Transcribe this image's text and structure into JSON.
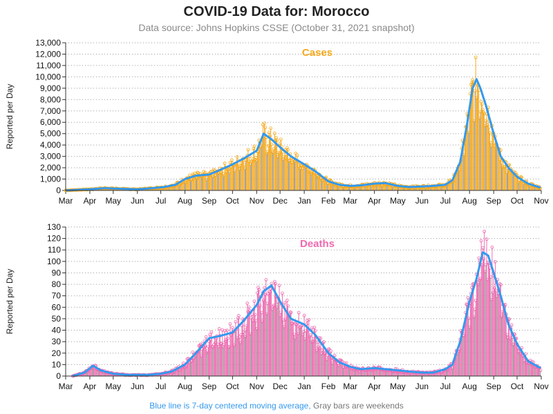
{
  "title": "COVID-19 Data for: Morocco",
  "subtitle": "Data source: Johns Hopkins CSSE (October 31, 2021 snapshot)",
  "footer": {
    "blue_text": "Blue line is 7-day centered moving average,",
    "gray_text": "Gray bars are weekends"
  },
  "colors": {
    "cases_bar": "#f5a91c",
    "deaths_bar": "#ee6ab0",
    "cases_label": "#f5a91c",
    "deaths_label": "#ee6ab0",
    "moving_average": "#3399ee",
    "weekend_bar": "#9a9a9a",
    "footer_blue": "#3399ee",
    "footer_gray": "#777777"
  },
  "chart_data": [
    {
      "type": "bar",
      "label": "Cases",
      "ylabel": "Reported per Day",
      "ylim": [
        0,
        13000
      ],
      "yticks": [
        0,
        1000,
        2000,
        3000,
        4000,
        5000,
        6000,
        7000,
        8000,
        9000,
        10000,
        11000,
        12000,
        13000
      ],
      "ytick_labels": [
        "0",
        "1,000",
        "2,000",
        "3,000",
        "4,000",
        "5,000",
        "6,000",
        "7,000",
        "8,000",
        "9,000",
        "10,000",
        "11,000",
        "12,000",
        "13,000"
      ],
      "xlim": [
        "2020-03-01",
        "2021-11-01"
      ],
      "xticks": [
        "Mar",
        "Apr",
        "May",
        "Jun",
        "Jul",
        "Aug",
        "Sep",
        "Oct",
        "Nov",
        "Dec",
        "Jan",
        "Feb",
        "Mar",
        "Apr",
        "May",
        "Jun",
        "Jul",
        "Aug",
        "Sep",
        "Oct",
        "Nov"
      ],
      "grid": "horizontal dotted",
      "series_name": "Blue line is 7-day centered moving average",
      "profile": {
        "x": [
          "2020-03-01",
          "2020-03-15",
          "2020-04-01",
          "2020-04-20",
          "2020-05-10",
          "2020-06-01",
          "2020-06-20",
          "2020-07-05",
          "2020-07-20",
          "2020-08-01",
          "2020-08-15",
          "2020-09-01",
          "2020-09-15",
          "2020-10-01",
          "2020-10-15",
          "2020-11-01",
          "2020-11-10",
          "2020-11-20",
          "2020-12-01",
          "2020-12-15",
          "2021-01-01",
          "2021-01-15",
          "2021-02-01",
          "2021-02-15",
          "2021-03-01",
          "2021-03-15",
          "2021-04-01",
          "2021-04-15",
          "2021-05-01",
          "2021-05-15",
          "2021-06-01",
          "2021-06-15",
          "2021-07-01",
          "2021-07-10",
          "2021-07-20",
          "2021-07-28",
          "2021-08-05",
          "2021-08-10",
          "2021-08-15",
          "2021-08-22",
          "2021-09-01",
          "2021-09-10",
          "2021-09-20",
          "2021-10-01",
          "2021-10-15",
          "2021-10-31"
        ],
        "y": [
          0,
          50,
          100,
          200,
          150,
          100,
          200,
          300,
          500,
          1000,
          1300,
          1400,
          1800,
          2300,
          2800,
          3500,
          5000,
          4500,
          3800,
          3000,
          2300,
          1700,
          800,
          500,
          400,
          450,
          600,
          650,
          400,
          300,
          350,
          400,
          500,
          900,
          2500,
          5500,
          9000,
          9800,
          9000,
          7500,
          5000,
          3000,
          2000,
          1200,
          600,
          250
        ]
      }
    },
    {
      "type": "bar",
      "label": "Deaths",
      "ylabel": "Reported per Day",
      "ylim": [
        0,
        130
      ],
      "yticks": [
        0,
        10,
        20,
        30,
        40,
        50,
        60,
        70,
        80,
        90,
        100,
        110,
        120,
        130
      ],
      "ytick_labels": [
        "0",
        "10",
        "20",
        "30",
        "40",
        "50",
        "60",
        "70",
        "80",
        "90",
        "100",
        "110",
        "120",
        "130"
      ],
      "xlim": [
        "2020-03-01",
        "2021-11-01"
      ],
      "xticks": [
        "Mar",
        "Apr",
        "May",
        "Jun",
        "Jul",
        "Aug",
        "Sep",
        "Oct",
        "Nov",
        "Dec",
        "Jan",
        "Feb",
        "Mar",
        "Apr",
        "May",
        "Jun",
        "Jul",
        "Aug",
        "Sep",
        "Oct",
        "Nov"
      ],
      "grid": "horizontal dotted",
      "series_name": "Blue line is 7-day centered moving average",
      "profile": {
        "x": [
          "2020-03-10",
          "2020-03-25",
          "2020-04-05",
          "2020-04-15",
          "2020-05-01",
          "2020-05-20",
          "2020-06-15",
          "2020-07-01",
          "2020-07-15",
          "2020-08-01",
          "2020-08-15",
          "2020-09-01",
          "2020-09-15",
          "2020-10-01",
          "2020-10-15",
          "2020-11-01",
          "2020-11-10",
          "2020-11-20",
          "2020-12-01",
          "2020-12-15",
          "2021-01-01",
          "2021-01-15",
          "2021-02-01",
          "2021-02-15",
          "2021-03-01",
          "2021-03-15",
          "2021-04-01",
          "2021-04-15",
          "2021-05-01",
          "2021-05-15",
          "2021-06-01",
          "2021-06-15",
          "2021-07-01",
          "2021-07-10",
          "2021-07-20",
          "2021-08-01",
          "2021-08-10",
          "2021-08-18",
          "2021-08-25",
          "2021-09-01",
          "2021-09-10",
          "2021-09-20",
          "2021-10-01",
          "2021-10-15",
          "2021-10-31"
        ],
        "y": [
          0,
          3,
          9,
          5,
          2,
          1,
          1,
          2,
          4,
          10,
          20,
          33,
          35,
          38,
          48,
          62,
          74,
          79,
          65,
          50,
          45,
          36,
          20,
          12,
          8,
          6,
          7,
          6,
          5,
          4,
          3,
          3,
          6,
          10,
          30,
          65,
          85,
          108,
          105,
          90,
          70,
          45,
          28,
          13,
          7
        ]
      }
    }
  ]
}
